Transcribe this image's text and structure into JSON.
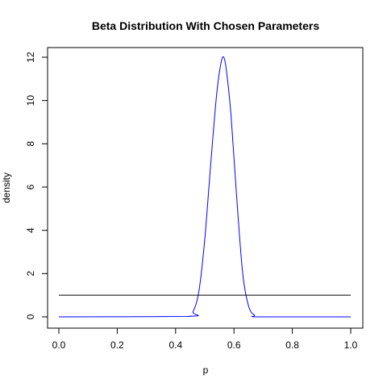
{
  "chart_data": {
    "type": "line",
    "title": "Beta Distribution With Chosen Parameters",
    "xlabel": "p",
    "ylabel": "density",
    "xlim": [
      0,
      1
    ],
    "ylim": [
      0,
      12
    ],
    "x_ticks": [
      "0.0",
      "0.2",
      "0.4",
      "0.6",
      "0.8",
      "1.0"
    ],
    "y_ticks": [
      "0",
      "2",
      "4",
      "6",
      "8",
      "10",
      "12"
    ],
    "grid": false,
    "legend": "none",
    "series": [
      {
        "color": "#0000ff",
        "x": [
          0.0,
          0.44,
          0.46,
          0.48,
          0.5,
          0.52,
          0.54,
          0.555,
          0.565,
          0.575,
          0.59,
          0.61,
          0.63,
          0.65,
          0.67,
          0.69,
          1.0
        ],
        "y": [
          0.0,
          0.02,
          0.25,
          1.2,
          3.6,
          7.0,
          10.2,
          11.7,
          12.0,
          11.3,
          9.3,
          5.4,
          2.0,
          0.5,
          0.08,
          0.0,
          0.0
        ]
      },
      {
        "color": "#000000",
        "x": [
          0.0,
          1.0
        ],
        "y": [
          1.0,
          1.0
        ]
      }
    ]
  }
}
